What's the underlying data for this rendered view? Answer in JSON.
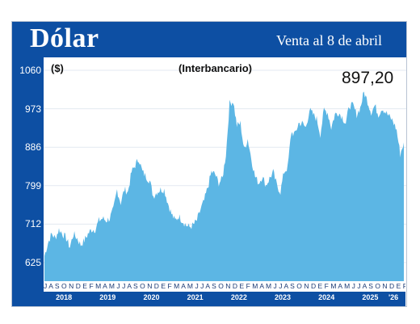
{
  "header": {
    "title": "Dólar",
    "subtitle": "Venta al 8 de abril"
  },
  "chart_data": {
    "type": "area",
    "unit_label": "($)",
    "market_label": "(Interbancario)",
    "last_value_label": "897,20",
    "ylim": [
      625,
      1060
    ],
    "yticks": [
      625,
      712,
      799,
      886,
      973,
      1060
    ],
    "ytick_labels": [
      "625",
      "712",
      "799",
      "886",
      "973",
      "1060"
    ],
    "xlim": [
      "2018-01",
      "2026-04"
    ],
    "month_labels": "J A S O N D E F M A M J J A S O N D E F M A M J J A S O N D E F M A M J J A S O N D E F M A M J J A S O N D E F M A M J J A S O N D E F M A M J J A S O N D E F M A M J J A S O N D E F M A M J J A S O N D E F M A",
    "year_labels": [
      "2018",
      "2019",
      "2020",
      "2021",
      "2022",
      "2023",
      "2024",
      "2025",
      "'26"
    ],
    "color": "#5cb6e4",
    "x": [
      "2018-01",
      "2018-02",
      "2018-03",
      "2018-04",
      "2018-05",
      "2018-06",
      "2018-07",
      "2018-08",
      "2018-09",
      "2018-10",
      "2018-11",
      "2018-12",
      "2019-01",
      "2019-02",
      "2019-03",
      "2019-04",
      "2019-05",
      "2019-06",
      "2019-07",
      "2019-08",
      "2019-09",
      "2019-10",
      "2019-11",
      "2019-12",
      "2020-01",
      "2020-02",
      "2020-03",
      "2020-04",
      "2020-05",
      "2020-06",
      "2020-07",
      "2020-08",
      "2020-09",
      "2020-10",
      "2020-11",
      "2020-12",
      "2021-01",
      "2021-02",
      "2021-03",
      "2021-04",
      "2021-05",
      "2021-06",
      "2021-07",
      "2021-08",
      "2021-09",
      "2021-10",
      "2021-11",
      "2021-12",
      "2022-01",
      "2022-02",
      "2022-03",
      "2022-04",
      "2022-05",
      "2022-06",
      "2022-07",
      "2022-08",
      "2022-09",
      "2022-10",
      "2022-11",
      "2022-12",
      "2023-01",
      "2023-02",
      "2023-03",
      "2023-04",
      "2023-05",
      "2023-06",
      "2023-07",
      "2023-08",
      "2023-09",
      "2023-10",
      "2023-11",
      "2023-12",
      "2024-01",
      "2024-02",
      "2024-03",
      "2024-04",
      "2024-05",
      "2024-06",
      "2024-07",
      "2024-08",
      "2024-09",
      "2024-10",
      "2024-11",
      "2024-12",
      "2025-01",
      "2025-02",
      "2025-03",
      "2025-04",
      "2025-05",
      "2025-06",
      "2025-07",
      "2025-08",
      "2025-09",
      "2025-10",
      "2025-11",
      "2025-12",
      "2026-01",
      "2026-02",
      "2026-03",
      "2026-04"
    ],
    "values": [
      640,
      670,
      690,
      680,
      700,
      690,
      680,
      660,
      690,
      680,
      665,
      675,
      690,
      700,
      700,
      720,
      725,
      720,
      725,
      745,
      790,
      760,
      790,
      785,
      830,
      845,
      860,
      830,
      820,
      810,
      775,
      785,
      790,
      790,
      760,
      735,
      720,
      730,
      720,
      710,
      705,
      710,
      720,
      745,
      765,
      795,
      830,
      825,
      805,
      815,
      870,
      985,
      990,
      935,
      940,
      880,
      905,
      860,
      820,
      805,
      820,
      800,
      815,
      830,
      800,
      785,
      830,
      840,
      920,
      915,
      940,
      940,
      930,
      970,
      960,
      950,
      915,
      970,
      965,
      930,
      960,
      965,
      955,
      940,
      980,
      980,
      960,
      975,
      1010,
      990,
      965,
      980,
      960,
      975,
      965,
      955,
      945,
      925,
      870,
      897
    ]
  }
}
